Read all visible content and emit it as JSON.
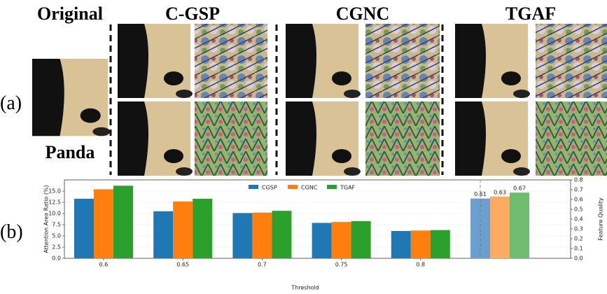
{
  "figure": {
    "panel_a_label": "(a)",
    "panel_b_label": "(b)",
    "column_titles": [
      "Original",
      "C-GSP",
      "CGNC",
      "TGAF"
    ],
    "class_label": "Panda"
  },
  "chart_data": {
    "type": "bar",
    "categories": [
      "0.6",
      "0.65",
      "0.7",
      "0.75",
      "0.8",
      null
    ],
    "x_label": "Threshold",
    "y_label": "Attention Area Ratio (%)",
    "y2_label": "Feature Quality",
    "ylim": [
      0,
      17.5
    ],
    "yticks": [
      {
        "value": 0,
        "label": "0.0"
      },
      2.5,
      {
        "value": 5,
        "label": "5.0"
      },
      7.5,
      {
        "value": 10,
        "label": "10.0"
      },
      12.5,
      {
        "value": 15,
        "label": "15.0"
      }
    ],
    "y2lim": [
      0,
      0.8
    ],
    "y2ticks": [
      {
        "value": 0,
        "label": "0.0"
      },
      0.1,
      0.2,
      0.3,
      0.4,
      0.5,
      0.6,
      0.7,
      0.8
    ],
    "grid": true,
    "legend": "top",
    "series": [
      {
        "name": "CGSP",
        "color": "#1f77b4",
        "values": [
          13.3,
          10.5,
          10.1,
          7.9,
          6.1,
          null
        ]
      },
      {
        "name": "CGNC",
        "color": "#ff7f0e",
        "values": [
          15.4,
          12.7,
          10.2,
          8.1,
          6.2,
          null
        ]
      },
      {
        "name": "TGAF",
        "color": "#2ca02c",
        "values": [
          16.2,
          13.3,
          10.6,
          8.3,
          6.3,
          null
        ]
      },
      {
        "axis": "y2",
        "color": "#6a9fce",
        "values": [
          null,
          null,
          null,
          null,
          null,
          0.61
        ]
      },
      {
        "axis": "y2",
        "color": "#fdaa62",
        "values": [
          null,
          null,
          null,
          null,
          null,
          0.63
        ]
      },
      {
        "axis": "y2",
        "color": "#6ebd6e",
        "values": [
          null,
          null,
          null,
          null,
          null,
          0.67
        ]
      }
    ]
  }
}
